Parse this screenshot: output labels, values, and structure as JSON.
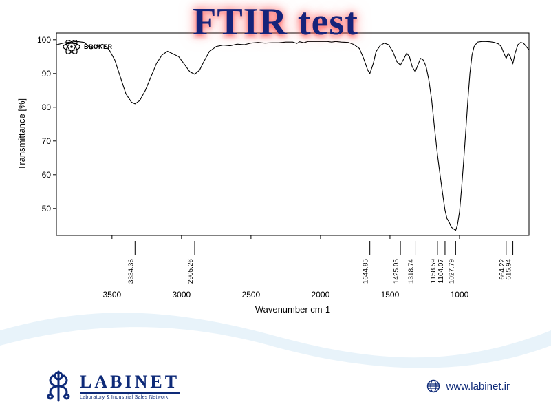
{
  "title": "FTIR test",
  "brand": {
    "name": "BRUKER"
  },
  "chart": {
    "type": "line",
    "xlabel": "Wavenumber cm-1",
    "ylabel": "Transmittance [%]",
    "xlim": [
      3900,
      500
    ],
    "ylim": [
      42,
      102
    ],
    "xticks": [
      3500,
      3000,
      2500,
      2000,
      1500,
      1000
    ],
    "yticks": [
      50,
      60,
      70,
      80,
      90,
      100
    ],
    "line_color": "#000000",
    "background_color": "#ffffff",
    "border_color": "#000000",
    "peak_labels": [
      {
        "x": 3334.36,
        "label": "3334.36"
      },
      {
        "x": 2905.26,
        "label": "2905.26"
      },
      {
        "x": 1644.85,
        "label": "1644.85"
      },
      {
        "x": 1425.05,
        "label": "1425.05"
      },
      {
        "x": 1318.74,
        "label": "1318.74"
      },
      {
        "x": 1158.59,
        "label": "1158.59"
      },
      {
        "x": 1104.07,
        "label": "1104.07"
      },
      {
        "x": 1027.79,
        "label": "1027.79"
      },
      {
        "x": 664.22,
        "label": "664.22"
      },
      {
        "x": 615.94,
        "label": "615.94"
      }
    ],
    "points": [
      [
        3900,
        98.5
      ],
      [
        3850,
        99
      ],
      [
        3800,
        99.3
      ],
      [
        3750,
        99.5
      ],
      [
        3700,
        99.2
      ],
      [
        3680,
        98.5
      ],
      [
        3650,
        97.2
      ],
      [
        3620,
        98.5
      ],
      [
        3600,
        98.0
      ],
      [
        3570,
        98.7
      ],
      [
        3550,
        98.2
      ],
      [
        3520,
        97.0
      ],
      [
        3480,
        94.0
      ],
      [
        3440,
        89.0
      ],
      [
        3400,
        84.0
      ],
      [
        3360,
        81.5
      ],
      [
        3334.36,
        81.0
      ],
      [
        3300,
        82.0
      ],
      [
        3260,
        85.0
      ],
      [
        3220,
        89.0
      ],
      [
        3180,
        93.0
      ],
      [
        3140,
        95.5
      ],
      [
        3100,
        96.6
      ],
      [
        3060,
        95.8
      ],
      [
        3020,
        95.0
      ],
      [
        2975,
        92.5
      ],
      [
        2940,
        90.5
      ],
      [
        2905.26,
        89.8
      ],
      [
        2870,
        91.0
      ],
      [
        2840,
        93.5
      ],
      [
        2800,
        96.5
      ],
      [
        2750,
        98.0
      ],
      [
        2700,
        98.4
      ],
      [
        2650,
        98.2
      ],
      [
        2600,
        98.7
      ],
      [
        2550,
        98.5
      ],
      [
        2500,
        99.0
      ],
      [
        2450,
        99.2
      ],
      [
        2400,
        99.0
      ],
      [
        2350,
        99.1
      ],
      [
        2300,
        99.1
      ],
      [
        2250,
        99.3
      ],
      [
        2200,
        99.3
      ],
      [
        2170,
        98.9
      ],
      [
        2150,
        99.4
      ],
      [
        2120,
        99.1
      ],
      [
        2090,
        99.5
      ],
      [
        2050,
        99.5
      ],
      [
        2000,
        99.5
      ],
      [
        1950,
        99.5
      ],
      [
        1920,
        99.3
      ],
      [
        1890,
        99.5
      ],
      [
        1850,
        99.3
      ],
      [
        1800,
        99.2
      ],
      [
        1760,
        98.6
      ],
      [
        1720,
        97.4
      ],
      [
        1690,
        94.5
      ],
      [
        1660,
        91.0
      ],
      [
        1644.85,
        90.0
      ],
      [
        1620,
        93.0
      ],
      [
        1600,
        96.5
      ],
      [
        1570,
        98.3
      ],
      [
        1540,
        99.0
      ],
      [
        1510,
        98.5
      ],
      [
        1480,
        96.5
      ],
      [
        1450,
        93.5
      ],
      [
        1425.05,
        92.5
      ],
      [
        1405,
        94.0
      ],
      [
        1380,
        96.0
      ],
      [
        1360,
        95.0
      ],
      [
        1340,
        92.0
      ],
      [
        1318.74,
        90.5
      ],
      [
        1300,
        92.5
      ],
      [
        1280,
        94.5
      ],
      [
        1260,
        94.0
      ],
      [
        1240,
        92.0
      ],
      [
        1220,
        88.0
      ],
      [
        1200,
        82.0
      ],
      [
        1180,
        74.0
      ],
      [
        1158.59,
        66.0
      ],
      [
        1140,
        60.0
      ],
      [
        1120,
        54.0
      ],
      [
        1104.07,
        49.5
      ],
      [
        1090,
        47.0
      ],
      [
        1075,
        46.0
      ],
      [
        1060,
        44.5
      ],
      [
        1045,
        44.0
      ],
      [
        1027.79,
        43.5
      ],
      [
        1015,
        45.0
      ],
      [
        1000,
        49.0
      ],
      [
        985,
        56.0
      ],
      [
        970,
        64.0
      ],
      [
        955,
        73.0
      ],
      [
        940,
        82.0
      ],
      [
        925,
        90.0
      ],
      [
        910,
        95.5
      ],
      [
        895,
        98.0
      ],
      [
        870,
        99.3
      ],
      [
        840,
        99.5
      ],
      [
        810,
        99.5
      ],
      [
        780,
        99.4
      ],
      [
        750,
        99.2
      ],
      [
        720,
        98.8
      ],
      [
        700,
        98.0
      ],
      [
        680,
        96.0
      ],
      [
        664.22,
        94.5
      ],
      [
        650,
        96.0
      ],
      [
        635,
        95.0
      ],
      [
        615.94,
        93.0
      ],
      [
        600,
        96.0
      ],
      [
        580,
        98.5
      ],
      [
        560,
        99.2
      ],
      [
        540,
        99.0
      ],
      [
        520,
        98.0
      ],
      [
        500,
        97.0
      ]
    ]
  },
  "colors": {
    "title": "#16237a",
    "footer_wave_a": "#e8f3fa",
    "footer_wave_b": "#ffffff",
    "brand_blue": "#0e2a78"
  },
  "footer": {
    "logo_name": "LABINET",
    "logo_tag": "Laboratory & Industrial Sales Network",
    "url": "www.labinet.ir"
  }
}
